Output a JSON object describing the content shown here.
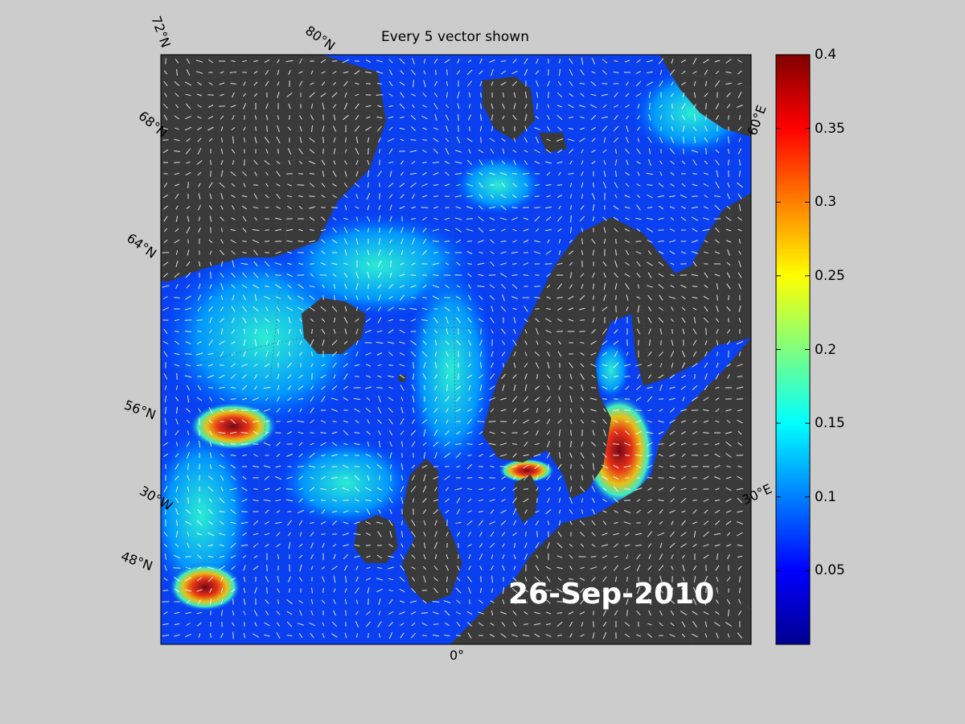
{
  "title": "Every 5 vector shown",
  "date_label": "26-Sep-2010",
  "lat_labels": [
    "72°N",
    "68°N",
    "64°N",
    "56°N",
    "48°N"
  ],
  "lon_labels": [
    "80°N",
    "30°W",
    "0°",
    "30°E",
    "60°E"
  ],
  "colorbar": {
    "min": 0,
    "max": 0.4,
    "ticks": [
      "0.4",
      "0.35",
      "0.3",
      "0.25",
      "0.2",
      "0.15",
      "0.1",
      "0.05"
    ],
    "tick_values": [
      0.4,
      0.35,
      0.3,
      0.25,
      0.2,
      0.15,
      0.1,
      0.05
    ],
    "colormap": "jet"
  },
  "colors": {
    "background": "#cccccc",
    "land": "#3a3a3a",
    "ocean_low": "#0000ff",
    "ocean_high": "#800000",
    "vectors": "#ffffff"
  }
}
